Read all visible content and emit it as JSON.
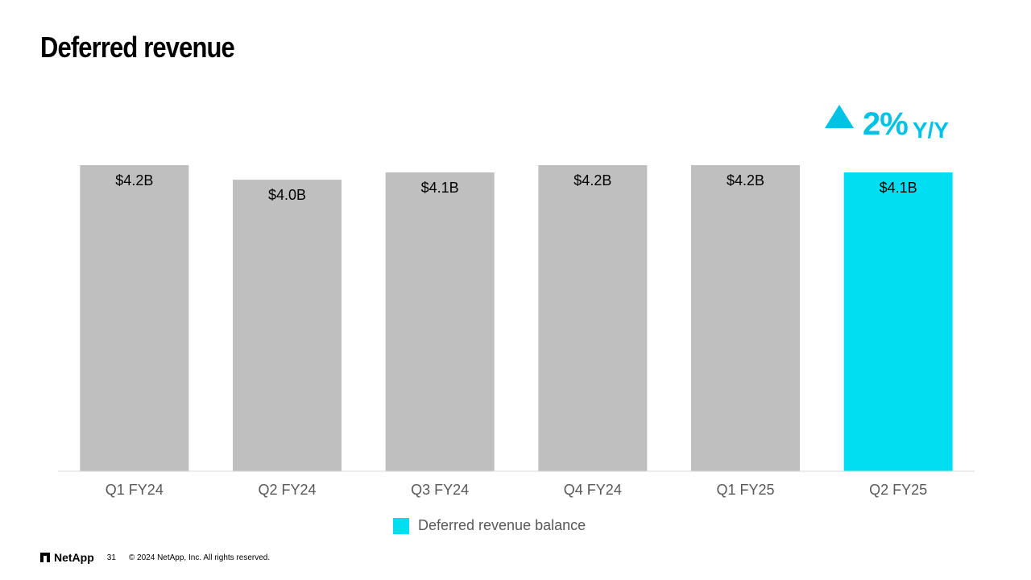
{
  "slide": {
    "title": "Deferred revenue",
    "growth": {
      "percent": "2%",
      "label": "Y/Y",
      "color": "#00c2e6"
    },
    "legend": {
      "label": "Deferred revenue balance",
      "color": "#00dff2"
    },
    "footer": {
      "logo_text": "NetApp",
      "page_number": "31",
      "copyright": "© 2024 NetApp, Inc. All rights reserved."
    }
  },
  "chart_data": {
    "type": "bar",
    "title": "Deferred revenue",
    "xlabel": "",
    "ylabel": "",
    "categories": [
      "Q1 FY24",
      "Q2 FY24",
      "Q3 FY24",
      "Q4 FY24",
      "Q1 FY25",
      "Q2 FY25"
    ],
    "series": [
      {
        "name": "Deferred revenue balance",
        "values": [
          4.2,
          4.0,
          4.1,
          4.2,
          4.2,
          4.1
        ],
        "labels": [
          "$4.2B",
          "$4.0B",
          "$4.1B",
          "$4.2B",
          "$4.2B",
          "$4.1B"
        ]
      }
    ],
    "ylim": [
      0,
      4.2
    ],
    "grid": false,
    "legend_position": "bottom",
    "colors": {
      "default": "#bfbfbf",
      "highlight": "#00dff2",
      "axis": "#d9d9d9",
      "tick_label": "#595959",
      "data_label": "#000000"
    },
    "highlight_index": 5
  }
}
